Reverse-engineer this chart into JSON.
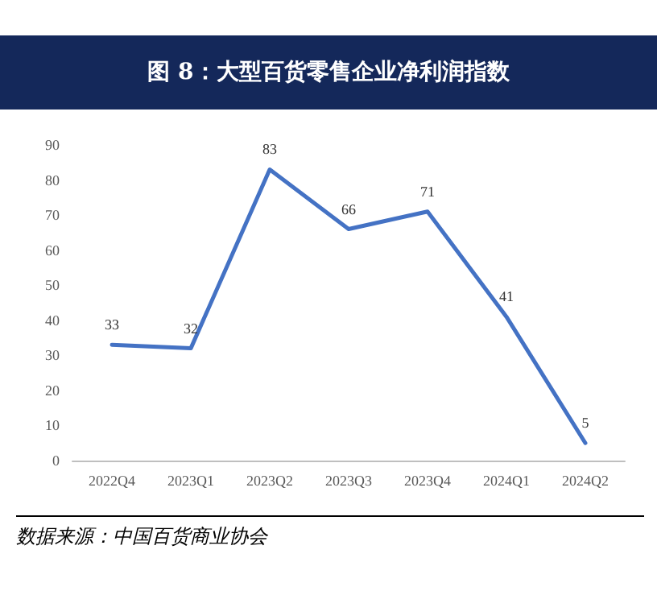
{
  "chart_data": {
    "type": "line",
    "title": "图 8：大型百货零售企业净利润指数",
    "categories": [
      "2022Q4",
      "2023Q1",
      "2023Q2",
      "2023Q3",
      "2023Q4",
      "2024Q1",
      "2024Q2"
    ],
    "series": [
      {
        "color": "#4472c4",
        "values": [
          33,
          32,
          83,
          66,
          71,
          41,
          5
        ]
      }
    ],
    "ylim": [
      0,
      90
    ],
    "yticks": [
      0,
      10,
      20,
      30,
      40,
      50,
      60,
      70,
      80,
      90
    ],
    "grid": false,
    "marker": "none",
    "line_style": "solid",
    "data_labels": true,
    "annotations": [
      "数据来源：中国百货商业协会"
    ]
  }
}
